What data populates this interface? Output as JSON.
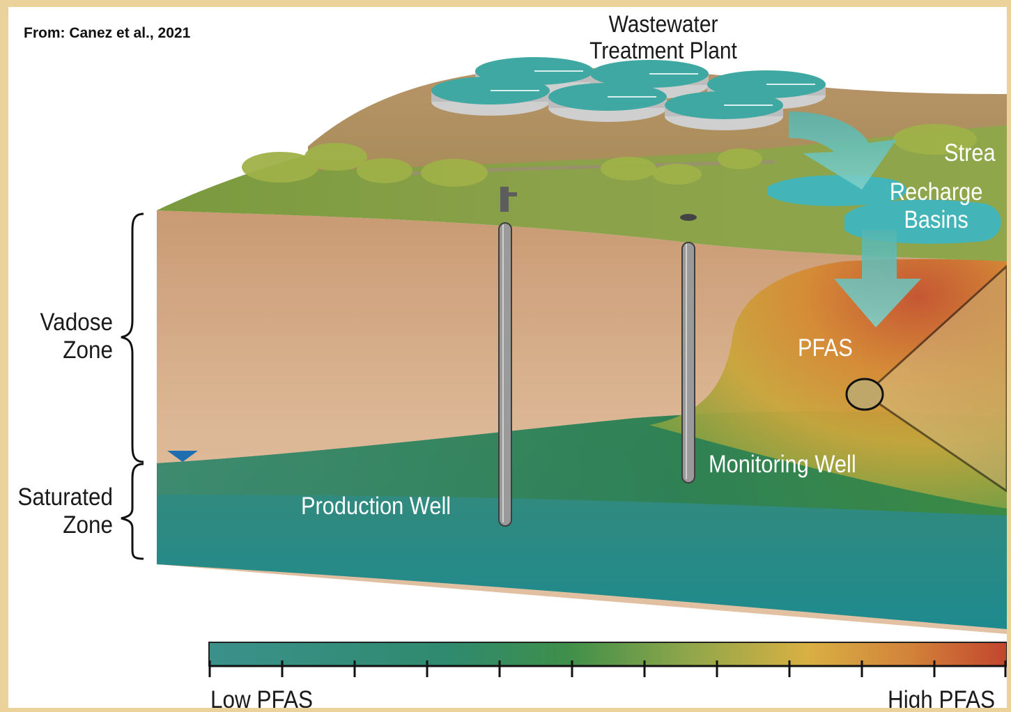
{
  "citation": "From: Canez et  al., 2021",
  "plant_label": {
    "line1": "Wastewater",
    "line2": "Treatment Plant"
  },
  "stream_label": "Strea",
  "recharge_label": {
    "line1": "Recharge",
    "line2": "Basins"
  },
  "pfas_label": "PFAS",
  "vadose_label": {
    "line1": "Vadose",
    "line2": "Zone"
  },
  "saturated_label": {
    "line1": "Saturated",
    "line2": "Zone"
  },
  "production_well_label": "Production Well",
  "monitoring_well_label": "Monitoring Well",
  "legend": {
    "low": "Low PFAS",
    "high": "High PFAS"
  },
  "colors": {
    "frame": "#ead29a",
    "ground_green": "#7d9a3c",
    "soil_tan": "#d8b08c",
    "water_teal": "#2e8f88",
    "pfas_high": "#c8502e",
    "pfas_mid": "#d9a63a",
    "water_table_marker": "#1f6fb0"
  }
}
